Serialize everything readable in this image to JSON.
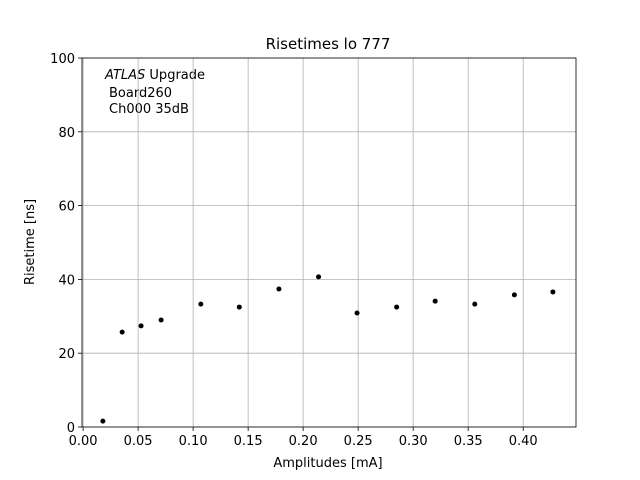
{
  "chart_data": {
    "type": "scatter",
    "title": "Risetimes lo 777",
    "xlabel": "Amplitudes [mA]",
    "ylabel": "Risetime [ns]",
    "annotation": {
      "italic": "ATLAS",
      "rest": "Upgrade",
      "lines": [
        "Board260",
        "Ch000 35dB"
      ]
    },
    "x": [
      0.018,
      0.0355,
      0.0527,
      0.0709,
      0.107,
      0.142,
      0.178,
      0.214,
      0.249,
      0.285,
      0.32,
      0.356,
      0.392,
      0.427
    ],
    "series": [
      {
        "color": "#000000",
        "values": [
          1.6,
          25.7,
          27.4,
          29.0,
          33.3,
          32.5,
          37.4,
          40.7,
          30.9,
          32.5,
          34.1,
          33.3,
          35.8,
          36.6
        ]
      }
    ],
    "xlim": [
      -0.001,
      0.448
    ],
    "ylim": [
      0,
      100
    ],
    "xticks": [
      {
        "value": 0,
        "label": "0.00"
      },
      0.05,
      {
        "value": 0.1,
        "label": "0.10"
      },
      0.15,
      {
        "value": 0.2,
        "label": "0.20"
      },
      0.25,
      {
        "value": 0.3,
        "label": "0.30"
      },
      0.35,
      {
        "value": 0.4,
        "label": "0.40"
      }
    ],
    "yticks": [
      0,
      20,
      40,
      60,
      80,
      100
    ],
    "grid": true
  }
}
